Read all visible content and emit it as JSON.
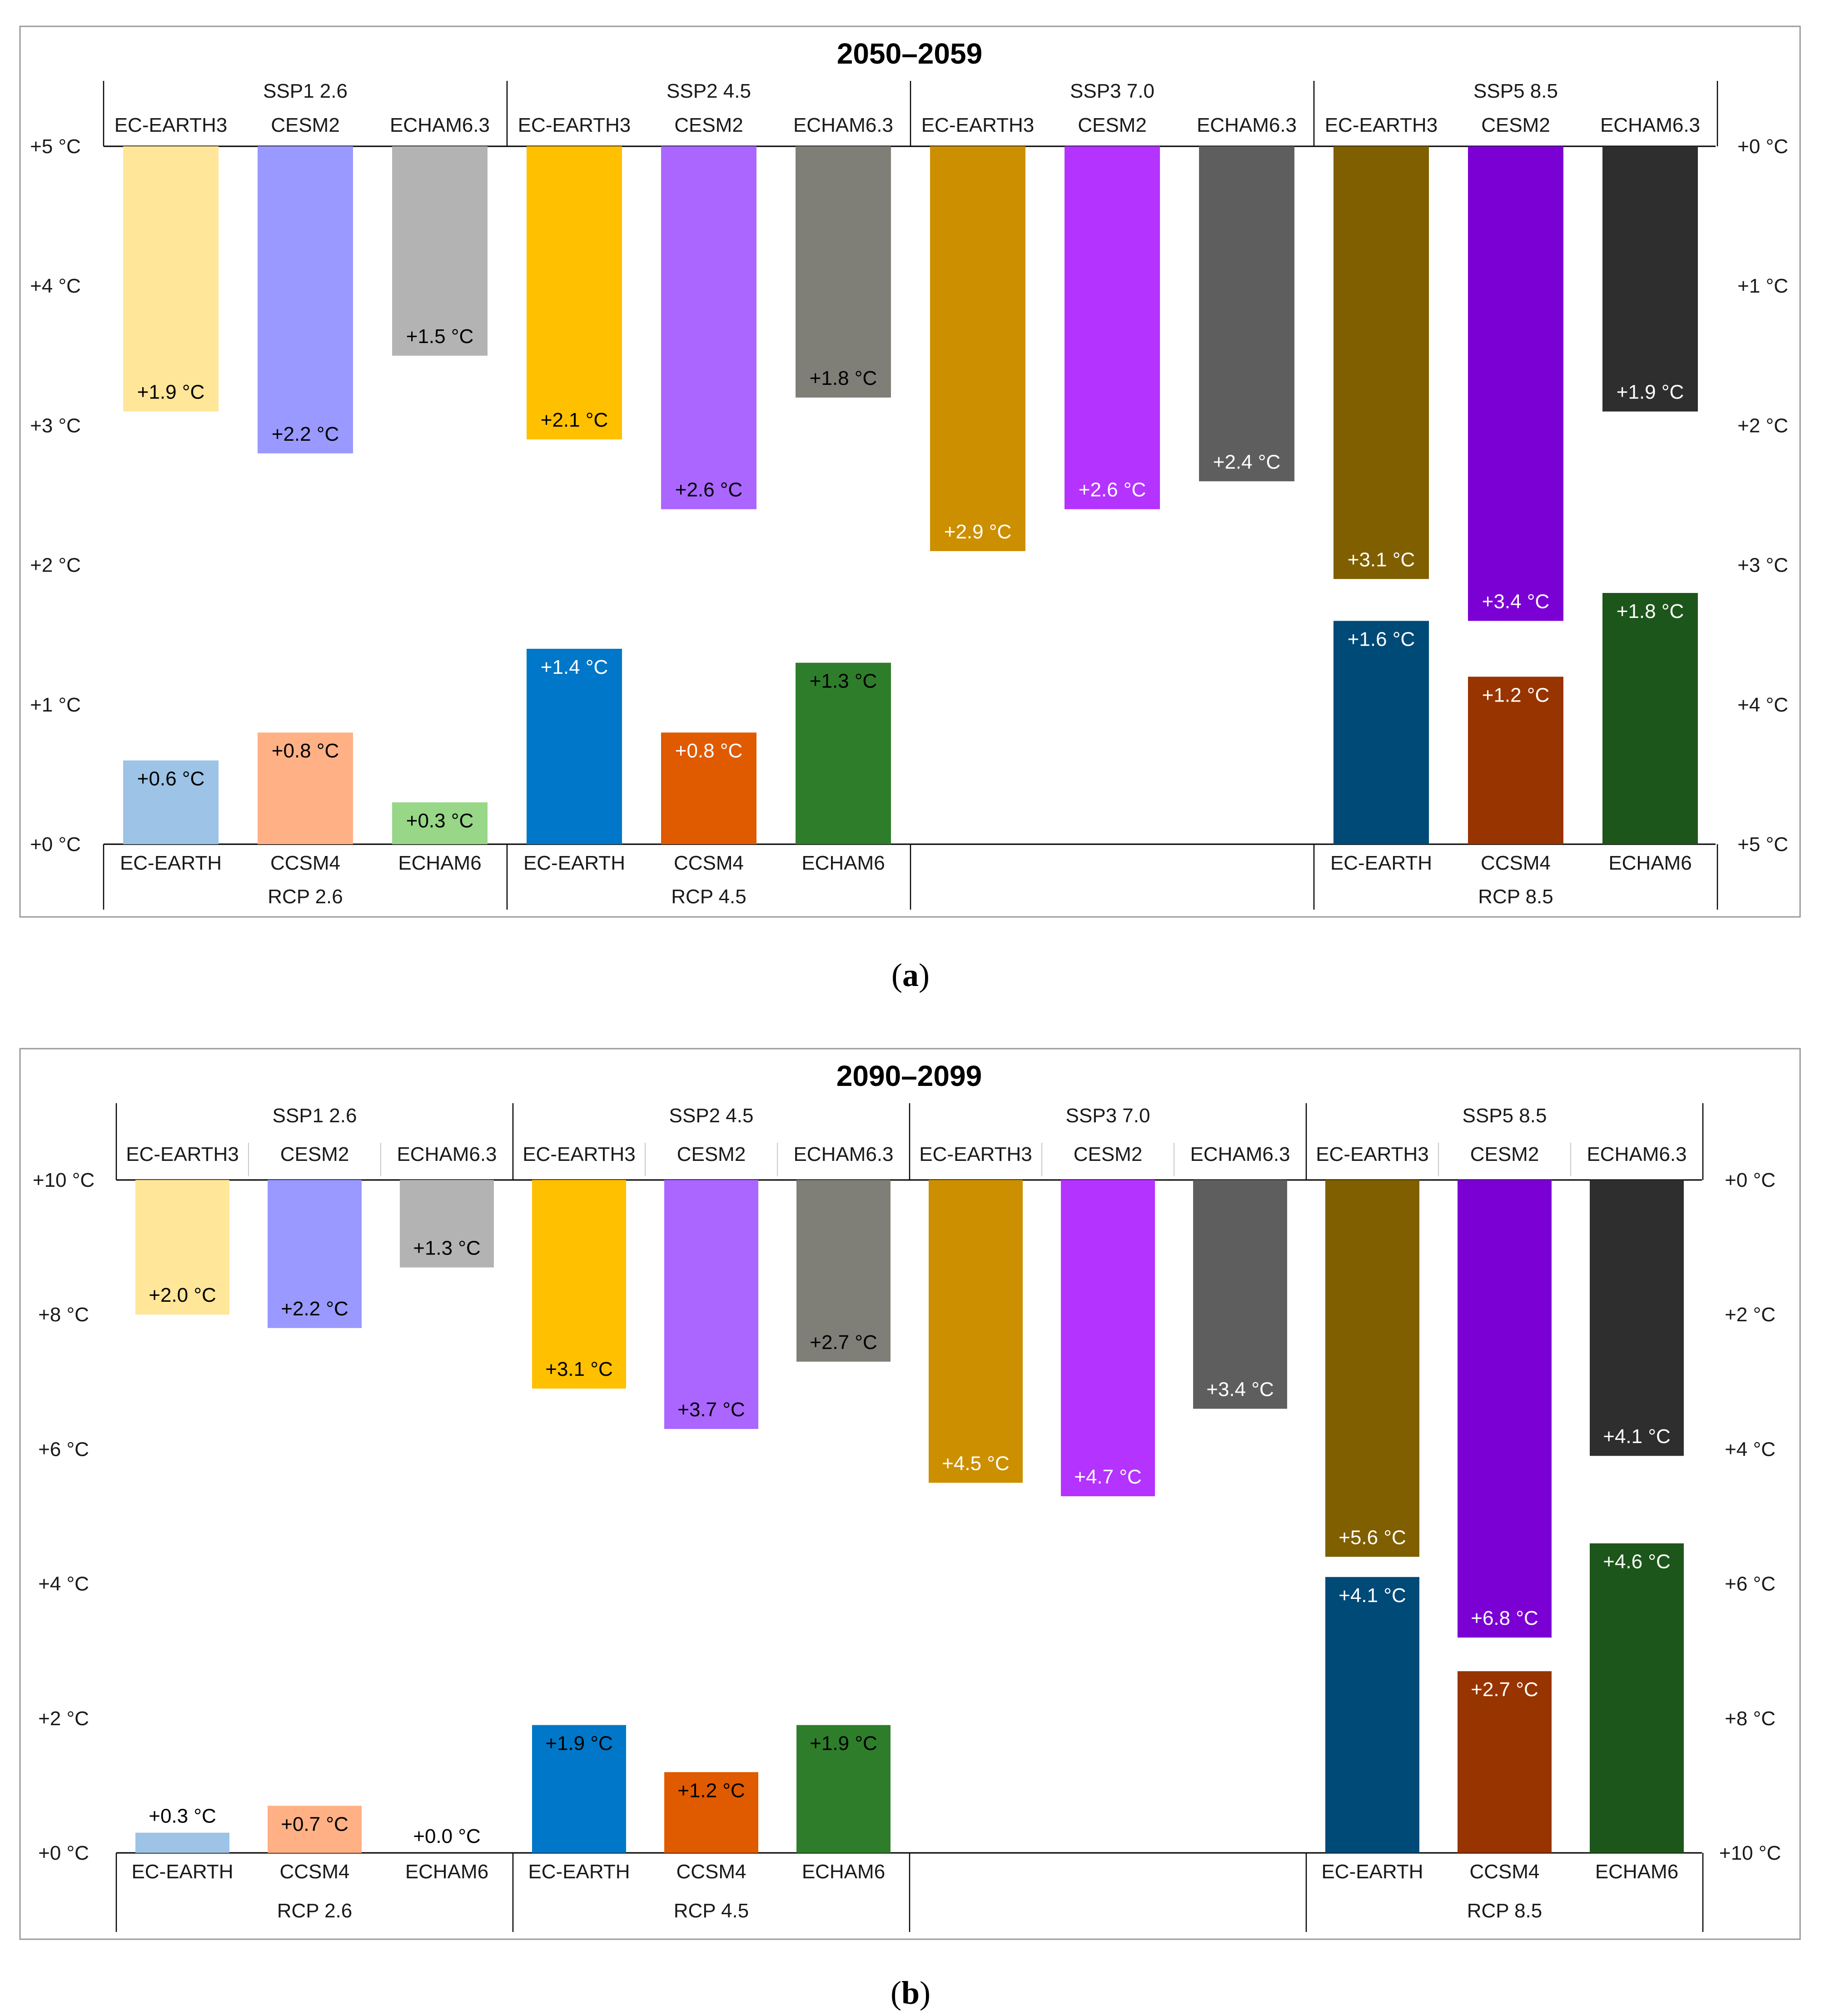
{
  "figure": {
    "panels": [
      {
        "caption_letter": "a",
        "title": "2050–2059",
        "left_ticks": [
          "+0 °C",
          "+1 °C",
          "+2 °C",
          "+3 °C",
          "+4 °C",
          "+5 °C"
        ],
        "right_ticks": [
          "+5 °C",
          "+4 °C",
          "+3 °C",
          "+2 °C",
          "+1 °C",
          "+0 °C"
        ],
        "top_groups": [
          {
            "scenario": "SSP1 2.6",
            "models": [
              "EC-EARTH3",
              "CESM2",
              "ECHAM6.3"
            ]
          },
          {
            "scenario": "SSP2 4.5",
            "models": [
              "EC-EARTH3",
              "CESM2",
              "ECHAM6.3"
            ]
          },
          {
            "scenario": "SSP3 7.0",
            "models": [
              "EC-EARTH3",
              "CESM2",
              "ECHAM6.3"
            ]
          },
          {
            "scenario": "SSP5 8.5",
            "models": [
              "EC-EARTH3",
              "CESM2",
              "ECHAM6.3"
            ]
          }
        ],
        "bottom_groups": [
          {
            "scenario": "RCP 2.6",
            "models": [
              "EC-EARTH",
              "CCSM4",
              "ECHAM6"
            ]
          },
          {
            "scenario": "RCP 4.5",
            "models": [
              "EC-EARTH",
              "CCSM4",
              "ECHAM6"
            ]
          },
          {
            "scenario": "",
            "models": [
              "",
              "",
              ""
            ]
          },
          {
            "scenario": "RCP 8.5",
            "models": [
              "EC-EARTH",
              "CCSM4",
              "ECHAM6"
            ]
          }
        ]
      },
      {
        "caption_letter": "b",
        "title": "2090–2099",
        "left_ticks": [
          "+0 °C",
          "+2 °C",
          "+4 °C",
          "+6 °C",
          "+8 °C",
          "+10 °C"
        ],
        "right_ticks": [
          "+10 °C",
          "+8 °C",
          "+6 °C",
          "+4 °C",
          "+2 °C",
          "+0 °C"
        ],
        "top_groups": [
          {
            "scenario": "SSP1 2.6",
            "models": [
              "EC-EARTH3",
              "CESM2",
              "ECHAM6.3"
            ]
          },
          {
            "scenario": "SSP2 4.5",
            "models": [
              "EC-EARTH3",
              "CESM2",
              "ECHAM6.3"
            ]
          },
          {
            "scenario": "SSP3 7.0",
            "models": [
              "EC-EARTH3",
              "CESM2",
              "ECHAM6.3"
            ]
          },
          {
            "scenario": "SSP5 8.5",
            "models": [
              "EC-EARTH3",
              "CESM2",
              "ECHAM6.3"
            ]
          }
        ],
        "bottom_groups": [
          {
            "scenario": "RCP 2.6",
            "models": [
              "EC-EARTH",
              "CCSM4",
              "ECHAM6"
            ]
          },
          {
            "scenario": "RCP 4.5",
            "models": [
              "EC-EARTH",
              "CCSM4",
              "ECHAM6"
            ]
          },
          {
            "scenario": "",
            "models": [
              "",
              "",
              ""
            ]
          },
          {
            "scenario": "RCP 8.5",
            "models": [
              "EC-EARTH",
              "CCSM4",
              "ECHAM6"
            ]
          }
        ]
      }
    ]
  },
  "chart_data": [
    {
      "type": "bar",
      "title": "2050–2059",
      "layout": "mirrored (CMIP6 bars hang down from the top axis, CMIP5 bars rise from the bottom axis)",
      "ylim_left": [
        0,
        5
      ],
      "ylim_right": [
        5,
        0
      ],
      "categories": [
        "EC-EARTH3 / EC-EARTH",
        "CESM2 / CCSM4",
        "ECHAM6.3 / ECHAM6",
        "EC-EARTH3 / EC-EARTH",
        "CESM2 / CCSM4",
        "ECHAM6.3 / ECHAM6",
        "EC-EARTH3",
        "CESM2",
        "ECHAM6.3",
        "EC-EARTH3 / EC-EARTH",
        "CESM2 / CCSM4",
        "ECHAM6.3 / ECHAM6"
      ],
      "top_bars": {
        "values": [
          1.9,
          2.2,
          1.5,
          2.1,
          2.6,
          1.8,
          2.9,
          2.6,
          2.4,
          3.1,
          3.4,
          1.9
        ],
        "labels": [
          "+1.9 °C",
          "+2.2 °C",
          "+1.5 °C",
          "+2.1 °C",
          "+2.6 °C",
          "+1.8 °C",
          "+2.9 °C",
          "+2.6 °C",
          "+2.4 °C",
          "+3.1 °C",
          "+3.4 °C",
          "+1.9 °C"
        ],
        "colors": [
          "#ffe699",
          "#9999ff",
          "#b3b3b3",
          "#ffc000",
          "#aa66ff",
          "#7f7f78",
          "#cc8f00",
          "#b433ff",
          "#5e5e5e",
          "#7f5f00",
          "#7b00d4",
          "#2e2e2e"
        ],
        "label_colors": [
          "#000",
          "#000",
          "#000",
          "#000",
          "#000",
          "#000",
          "#fff",
          "#fff",
          "#fff",
          "#fff",
          "#fff",
          "#fff"
        ]
      },
      "bottom_bars": {
        "values": [
          0.6,
          0.8,
          0.3,
          1.4,
          0.8,
          1.3,
          null,
          null,
          null,
          1.6,
          1.2,
          1.8
        ],
        "labels": [
          "+0.6 °C",
          "+0.8 °C",
          "+0.3 °C",
          "+1.4 °C",
          "+0.8 °C",
          "+1.3 °C",
          "",
          "",
          "",
          "+1.6 °C",
          "+1.2 °C",
          "+1.8 °C"
        ],
        "colors": [
          "#9dc3e6",
          "#ffb085",
          "#97d787",
          "#0077c8",
          "#e05a00",
          "#2e7d2a",
          "",
          "",
          "",
          "#004a78",
          "#983400",
          "#1d561a"
        ],
        "label_colors": [
          "#000",
          "#000",
          "#000",
          "#fff",
          "#fff",
          "#000",
          "",
          "",
          "",
          "#fff",
          "#fff",
          "#fff"
        ]
      }
    },
    {
      "type": "bar",
      "title": "2090–2099",
      "layout": "mirrored (CMIP6 bars hang down from the top axis, CMIP5 bars rise from the bottom axis)",
      "ylim_left": [
        0,
        10
      ],
      "ylim_right": [
        10,
        0
      ],
      "categories": [
        "EC-EARTH3 / EC-EARTH",
        "CESM2 / CCSM4",
        "ECHAM6.3 / ECHAM6",
        "EC-EARTH3 / EC-EARTH",
        "CESM2 / CCSM4",
        "ECHAM6.3 / ECHAM6",
        "EC-EARTH3",
        "CESM2",
        "ECHAM6.3",
        "EC-EARTH3 / EC-EARTH",
        "CESM2 / CCSM4",
        "ECHAM6.3 / ECHAM6"
      ],
      "top_bars": {
        "values": [
          2.0,
          2.2,
          1.3,
          3.1,
          3.7,
          2.7,
          4.5,
          4.7,
          3.4,
          5.6,
          6.8,
          4.1
        ],
        "labels": [
          "+2.0 °C",
          "+2.2 °C",
          "+1.3 °C",
          "+3.1 °C",
          "+3.7 °C",
          "+2.7 °C",
          "+4.5 °C",
          "+4.7 °C",
          "+3.4 °C",
          "+5.6 °C",
          "+6.8 °C",
          "+4.1 °C"
        ],
        "colors": [
          "#ffe699",
          "#9999ff",
          "#b3b3b3",
          "#ffc000",
          "#aa66ff",
          "#7f7f78",
          "#cc8f00",
          "#b433ff",
          "#5e5e5e",
          "#7f5f00",
          "#7b00d4",
          "#2e2e2e"
        ],
        "label_colors": [
          "#000",
          "#000",
          "#000",
          "#000",
          "#000",
          "#000",
          "#fff",
          "#fff",
          "#fff",
          "#fff",
          "#fff",
          "#fff"
        ]
      },
      "bottom_bars": {
        "values": [
          0.3,
          0.7,
          0.0,
          1.9,
          1.2,
          1.9,
          null,
          null,
          null,
          4.1,
          2.7,
          4.6
        ],
        "labels": [
          "+0.3 °C",
          "+0.7 °C",
          "+0.0 °C",
          "+1.9 °C",
          "+1.2 °C",
          "+1.9 °C",
          "",
          "",
          "",
          "+4.1 °C",
          "+2.7 °C",
          "+4.6 °C"
        ],
        "colors": [
          "#9dc3e6",
          "#ffb085",
          "#97d787",
          "#0077c8",
          "#e05a00",
          "#2e7d2a",
          "",
          "",
          "",
          "#004a78",
          "#983400",
          "#1d561a"
        ],
        "label_colors": [
          "#000",
          "#000",
          "#000",
          "#000",
          "#000",
          "#000",
          "",
          "",
          "",
          "#fff",
          "#fff",
          "#fff"
        ]
      }
    }
  ]
}
